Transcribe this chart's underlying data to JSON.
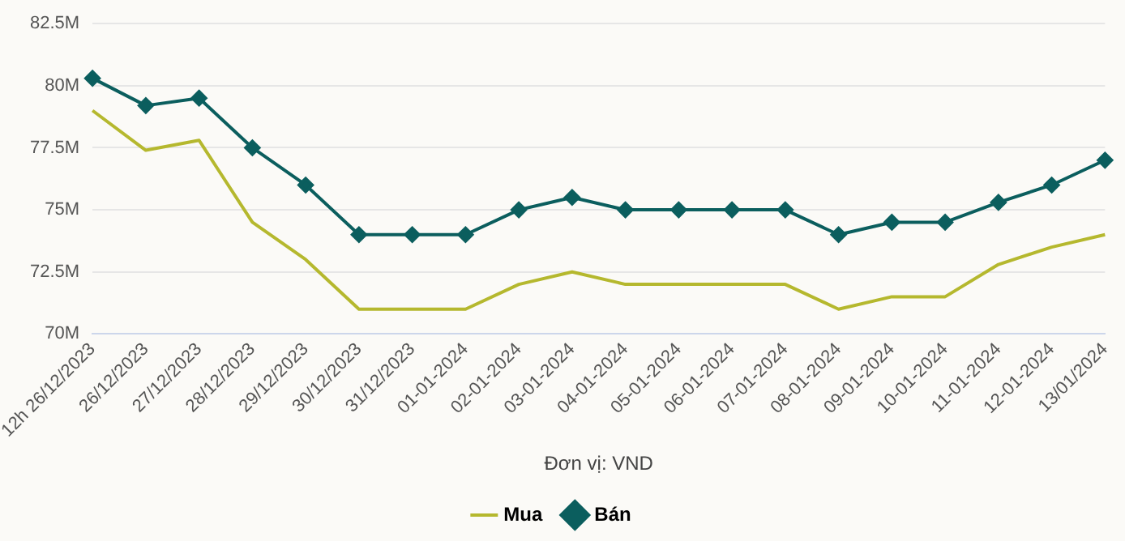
{
  "chart_data": {
    "type": "line",
    "xlabel": "Đơn vị: VND",
    "categories": [
      "12h 26/12/2023",
      "26/12/2023",
      "27/12/2023",
      "28/12/2023",
      "29/12/2023",
      "30/12/2023",
      "31/12/2023",
      "01-01-2024",
      "02-01-2024",
      "03-01-2024",
      "04-01-2024",
      "05-01-2024",
      "06-01-2024",
      "07-01-2024",
      "08-01-2024",
      "09-01-2024",
      "10-01-2024",
      "11-01-2024",
      "12-01-2024",
      "13/01/2024"
    ],
    "series": [
      {
        "name": "Mua",
        "color": "#b5b82e",
        "marker": "none",
        "values": [
          79,
          77.4,
          77.8,
          74.5,
          73,
          71,
          71,
          71,
          72,
          72.5,
          72,
          72,
          72,
          72,
          71,
          71.5,
          71.5,
          72.8,
          73.5,
          74
        ]
      },
      {
        "name": "Bán",
        "color": "#0b5e5e",
        "marker": "diamond",
        "values": [
          80.3,
          79.2,
          79.5,
          77.5,
          76,
          74,
          74,
          74,
          75,
          75.5,
          75,
          75,
          75,
          75,
          74,
          74.5,
          74.5,
          75.3,
          76,
          77
        ]
      }
    ],
    "ylim": [
      70,
      82.5
    ],
    "yticks": [
      {
        "value": 70,
        "label": "70M"
      },
      {
        "value": 72.5,
        "label": "72.5M"
      },
      {
        "value": 75,
        "label": "75M"
      },
      {
        "value": 77.5,
        "label": "77.5M"
      },
      {
        "value": 80,
        "label": "80M"
      },
      {
        "value": 82.5,
        "label": "82.5M"
      }
    ],
    "grid": "y",
    "legend": "bottom"
  }
}
